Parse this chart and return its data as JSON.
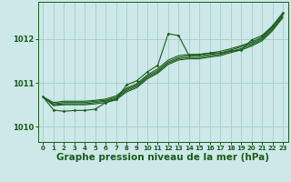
{
  "background_color": "#cce8e8",
  "grid_color": "#aacccc",
  "line_color": "#1a5c1a",
  "xlabel": "Graphe pression niveau de la mer (hPa)",
  "xlabel_fontsize": 7.5,
  "ylim": [
    1009.65,
    1012.85
  ],
  "xlim": [
    -0.5,
    23.5
  ],
  "yticks": [
    1010,
    1011,
    1012
  ],
  "xticks": [
    0,
    1,
    2,
    3,
    4,
    5,
    6,
    7,
    8,
    9,
    10,
    11,
    12,
    13,
    14,
    15,
    16,
    17,
    18,
    19,
    20,
    21,
    22,
    23
  ],
  "smooth_series": [
    [
      1010.68,
      1010.55,
      1010.58,
      1010.58,
      1010.58,
      1010.6,
      1010.63,
      1010.7,
      1010.88,
      1010.98,
      1011.18,
      1011.32,
      1011.52,
      1011.62,
      1011.65,
      1011.65,
      1011.68,
      1011.72,
      1011.78,
      1011.85,
      1011.93,
      1012.05,
      1012.28,
      1012.58
    ],
    [
      1010.68,
      1010.52,
      1010.55,
      1010.55,
      1010.55,
      1010.58,
      1010.6,
      1010.67,
      1010.85,
      1010.95,
      1011.15,
      1011.28,
      1011.48,
      1011.58,
      1011.62,
      1011.62,
      1011.65,
      1011.68,
      1011.75,
      1011.82,
      1011.9,
      1012.02,
      1012.25,
      1012.55
    ],
    [
      1010.68,
      1010.5,
      1010.52,
      1010.52,
      1010.52,
      1010.55,
      1010.58,
      1010.64,
      1010.82,
      1010.92,
      1011.12,
      1011.25,
      1011.45,
      1011.55,
      1011.58,
      1011.58,
      1011.62,
      1011.65,
      1011.72,
      1011.78,
      1011.87,
      1011.99,
      1012.22,
      1012.52
    ],
    [
      1010.68,
      1010.48,
      1010.5,
      1010.5,
      1010.5,
      1010.52,
      1010.55,
      1010.61,
      1010.79,
      1010.89,
      1011.09,
      1011.22,
      1011.42,
      1011.52,
      1011.55,
      1011.55,
      1011.59,
      1011.62,
      1011.69,
      1011.75,
      1011.84,
      1011.96,
      1012.19,
      1012.49
    ]
  ],
  "main_x": [
    0,
    1,
    2,
    3,
    4,
    5,
    6,
    7,
    8,
    9,
    10,
    11,
    12,
    13,
    14,
    15,
    16,
    17,
    18,
    19,
    20,
    21,
    22,
    23
  ],
  "main_y": [
    1010.68,
    1010.38,
    1010.35,
    1010.37,
    1010.37,
    1010.4,
    1010.55,
    1010.62,
    1010.95,
    1011.05,
    1011.25,
    1011.4,
    1012.12,
    1012.08,
    1011.62,
    1011.65,
    1011.68,
    1011.68,
    1011.72,
    1011.75,
    1011.98,
    1012.08,
    1012.3,
    1012.6
  ]
}
